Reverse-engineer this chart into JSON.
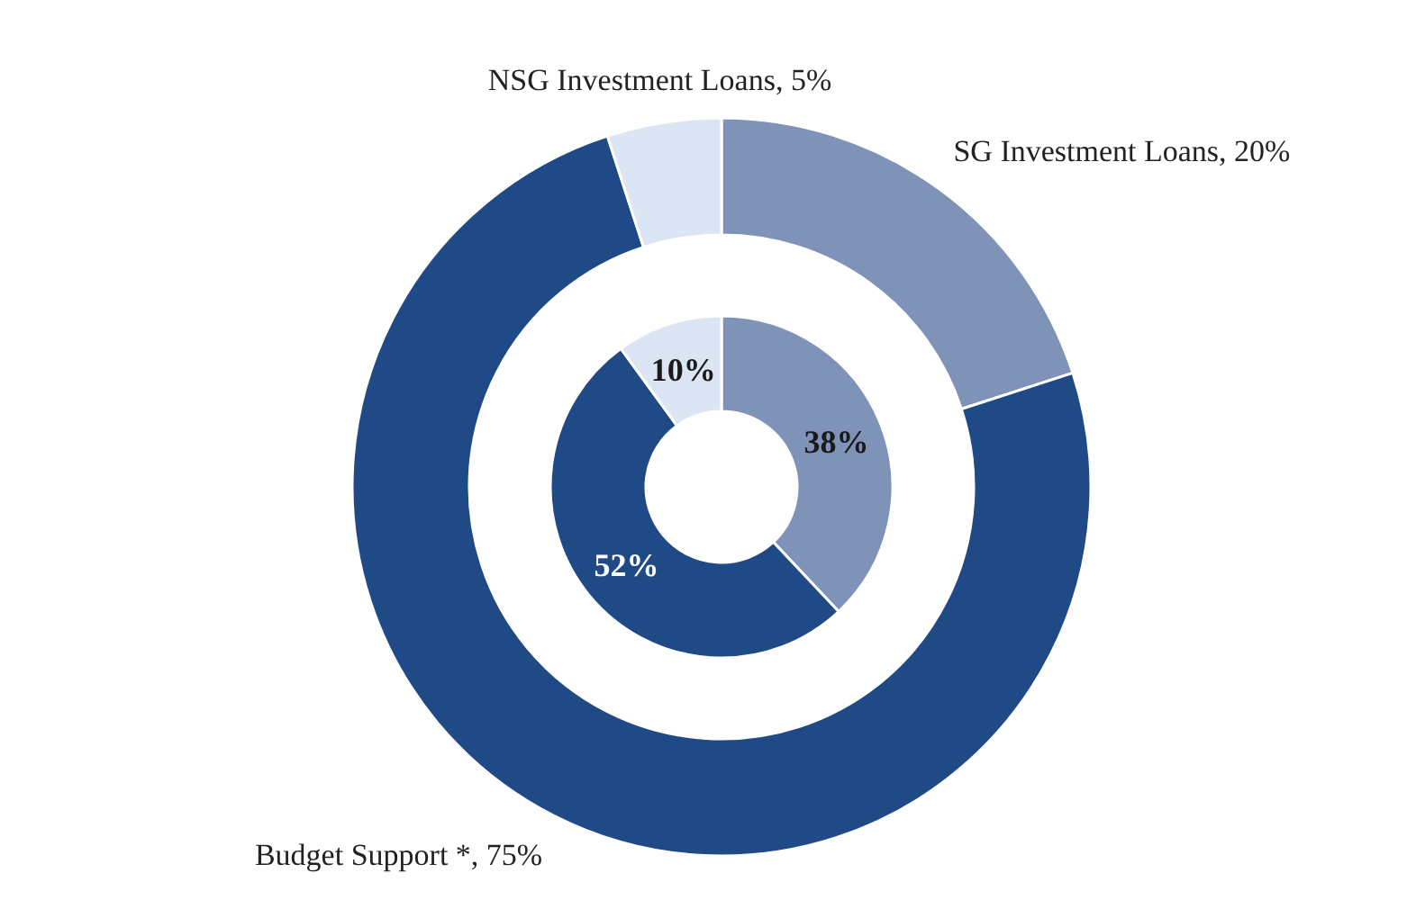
{
  "chart_data": {
    "type": "donut",
    "categories": [
      "SG Investment Loans",
      "Budget Support *",
      "NSG Investment Loans"
    ],
    "colors": [
      "#7f93b8",
      "#1f4a86",
      "#dbe5f3"
    ],
    "series": [
      {
        "values": [
          20,
          75,
          5
        ],
        "value_labels": [
          "20%",
          "75%",
          "5%"
        ]
      },
      {
        "values": [
          38,
          52,
          10
        ],
        "value_labels": [
          "38%",
          "52%",
          "10%"
        ]
      }
    ]
  }
}
